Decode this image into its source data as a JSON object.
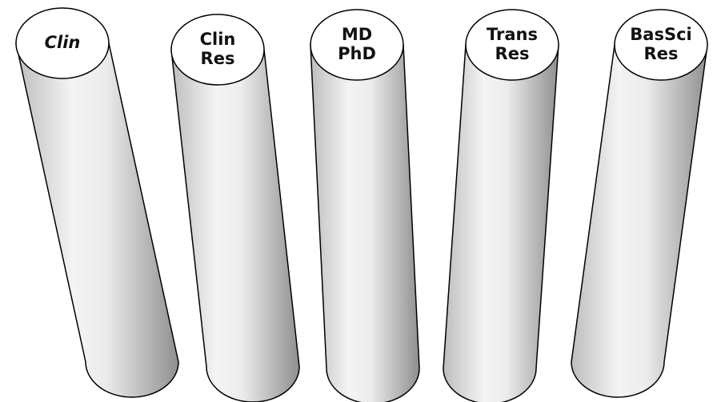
{
  "pillars": [
    {
      "lines": [
        "Clin"
      ]
    },
    {
      "lines": [
        "Clin",
        "Res"
      ]
    },
    {
      "lines": [
        "MD",
        "PhD"
      ]
    },
    {
      "lines": [
        "Trans",
        "Res"
      ]
    },
    {
      "lines": [
        "BasSci",
        "Res"
      ]
    }
  ]
}
